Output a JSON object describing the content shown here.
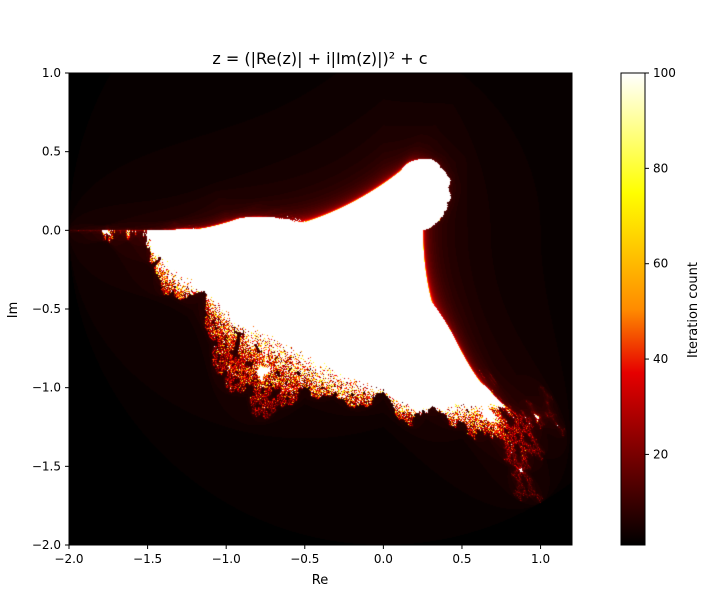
{
  "chart_data": {
    "type": "heatmap",
    "title": "z = (|Re(z)| + i|Im(z)|)² + c",
    "xlabel": "Re",
    "ylabel": "Im",
    "xlim": [
      -2.0,
      1.2
    ],
    "ylim": [
      -2.0,
      1.0
    ],
    "x_ticks": [
      -2.0,
      -1.5,
      -1.0,
      -0.5,
      0.0,
      0.5,
      1.0
    ],
    "x_tick_labels": [
      "−2.0",
      "−1.5",
      "−1.0",
      "−0.5",
      "0.0",
      "0.5",
      "1.0"
    ],
    "y_ticks": [
      1.0,
      0.5,
      0.0,
      -0.5,
      -1.0,
      -1.5,
      -2.0
    ],
    "y_tick_labels": [
      "1.0",
      "0.5",
      "0.0",
      "−0.5",
      "−1.0",
      "−1.5",
      "−2.0"
    ],
    "colorbar": {
      "label": "Iteration count",
      "range": [
        1,
        100
      ],
      "ticks": [
        100,
        80,
        60,
        40,
        20
      ],
      "tick_labels": [
        "100",
        "80",
        "60",
        "40",
        "20"
      ],
      "colormap": "hot"
    },
    "max_iterations": 100,
    "escape_radius": 2,
    "grid": false
  },
  "colors": {
    "background": "#ffffff",
    "cmap_low": "#000000",
    "cmap_mid1": "#e60000",
    "cmap_mid2": "#ff8c00",
    "cmap_high2": "#ffff00",
    "cmap_high": "#ffffff"
  }
}
